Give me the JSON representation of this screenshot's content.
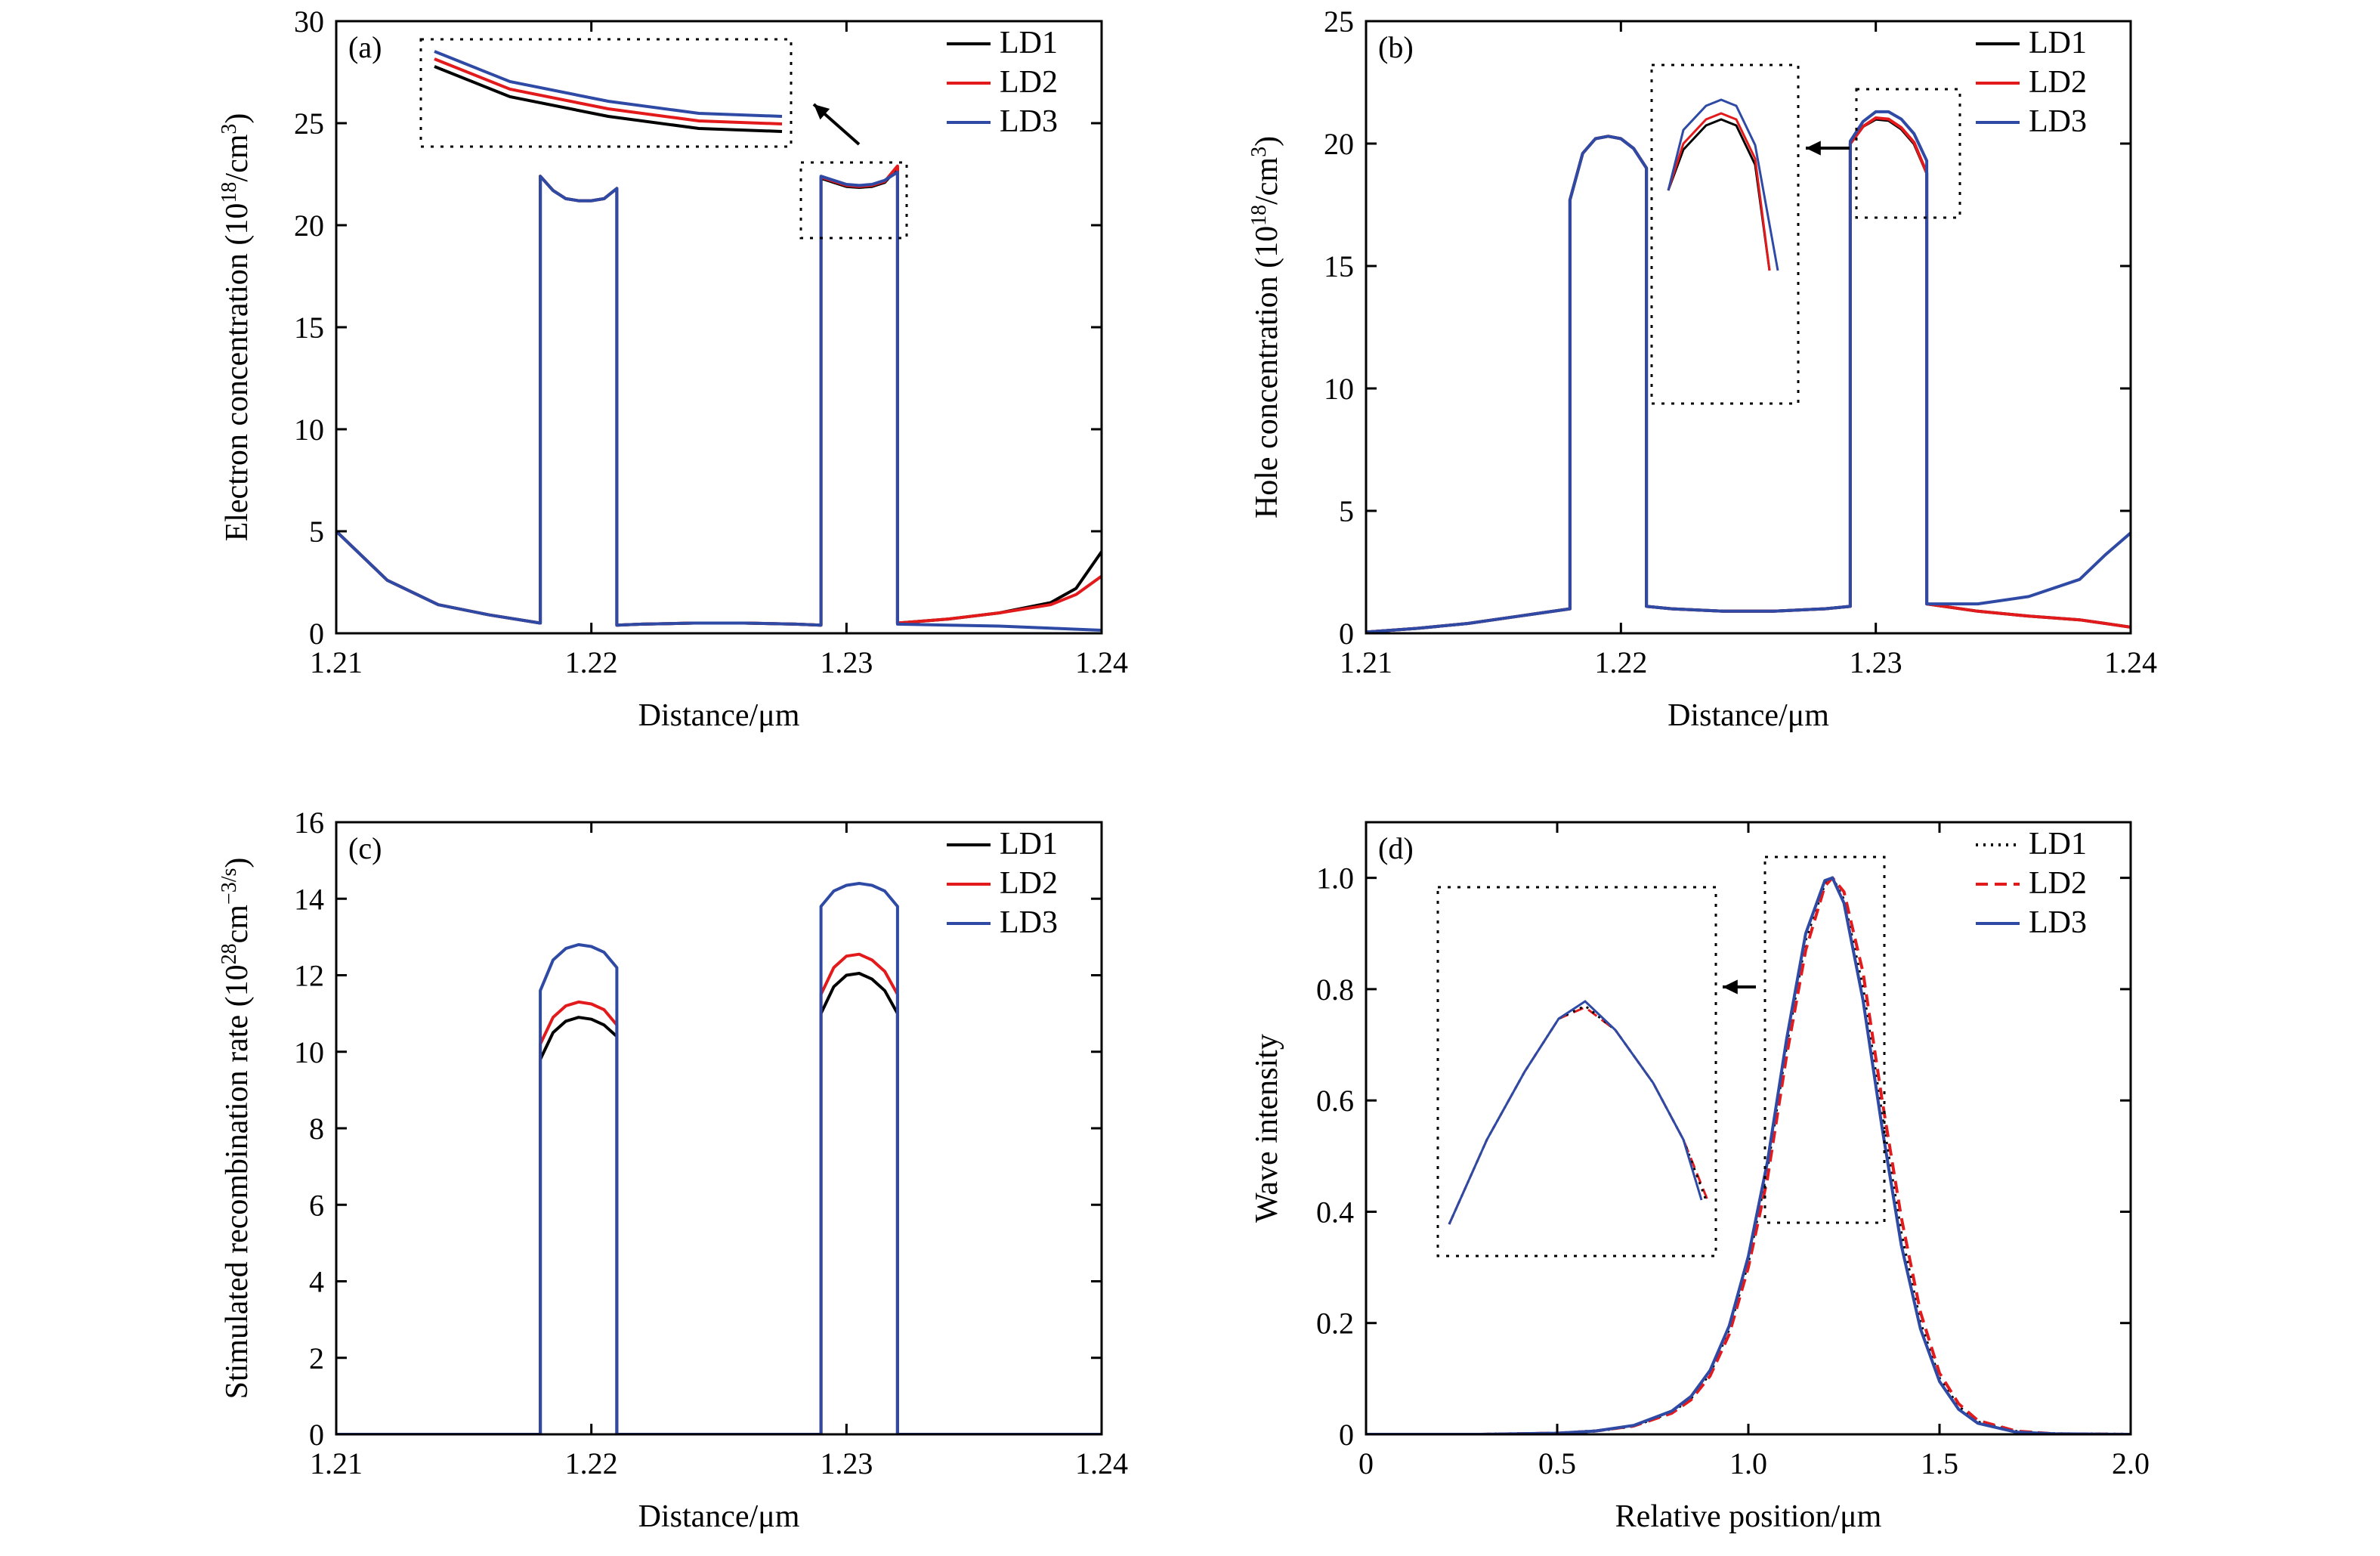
{
  "colors": {
    "LD1": "#000000",
    "LD2": "#e31a1c",
    "LD3": "#2e4aa5"
  },
  "chart_data": [
    {
      "type": "line",
      "panel": "(a)",
      "xlabel": "Distance/μm",
      "ylabel_main": "Electron concentration (10",
      "ylabel_sup": "18",
      "ylabel_mid": "/cm",
      "ylabel_sup2": "3",
      "ylabel_end": ")",
      "xlim": [
        1.21,
        1.24
      ],
      "ylim": [
        0,
        30
      ],
      "xticks": [
        "1.21",
        "1.22",
        "1.23",
        "1.24"
      ],
      "yticks": [
        "0",
        "5",
        "10",
        "15",
        "20",
        "25",
        "30"
      ],
      "legend": [
        "LD1",
        "LD2",
        "LD3"
      ],
      "legend_position": "top-right",
      "x": [
        1.21,
        1.212,
        1.214,
        1.216,
        1.218,
        1.218,
        1.2185,
        1.219,
        1.2195,
        1.22,
        1.2205,
        1.221,
        1.221,
        1.222,
        1.224,
        1.226,
        1.228,
        1.229,
        1.229,
        1.2295,
        1.23,
        1.2305,
        1.231,
        1.2315,
        1.232,
        1.232,
        1.234,
        1.236,
        1.238,
        1.239,
        1.24
      ],
      "series": [
        {
          "name": "LD1",
          "style": "solid",
          "values": [
            5.0,
            2.6,
            1.4,
            0.9,
            0.5,
            22.4,
            21.7,
            21.3,
            21.2,
            21.2,
            21.3,
            21.8,
            0.4,
            0.45,
            0.5,
            0.5,
            0.45,
            0.4,
            22.3,
            22.1,
            21.9,
            21.85,
            21.9,
            22.1,
            22.8,
            0.5,
            0.7,
            1.0,
            1.5,
            2.2,
            4.0
          ]
        },
        {
          "name": "LD2",
          "style": "solid",
          "values": [
            5.0,
            2.6,
            1.4,
            0.9,
            0.5,
            22.4,
            21.7,
            21.3,
            21.2,
            21.2,
            21.3,
            21.8,
            0.4,
            0.45,
            0.5,
            0.5,
            0.45,
            0.4,
            22.35,
            22.15,
            21.95,
            21.9,
            21.95,
            22.15,
            22.9,
            0.5,
            0.7,
            1.0,
            1.4,
            1.9,
            2.8
          ]
        },
        {
          "name": "LD3",
          "style": "solid",
          "values": [
            5.0,
            2.6,
            1.4,
            0.9,
            0.5,
            22.4,
            21.7,
            21.3,
            21.2,
            21.2,
            21.3,
            21.8,
            0.4,
            0.45,
            0.5,
            0.5,
            0.45,
            0.4,
            22.4,
            22.2,
            22.0,
            21.95,
            22.0,
            22.2,
            22.6,
            0.45,
            0.4,
            0.35,
            0.25,
            0.2,
            0.15
          ]
        }
      ]
    },
    {
      "type": "line",
      "panel": "(b)",
      "xlabel": "Distance/μm",
      "ylabel_main": "Hole concentration (10",
      "ylabel_sup": "18",
      "ylabel_mid": "/cm",
      "ylabel_sup2": "3",
      "ylabel_end": ")",
      "xlim": [
        1.21,
        1.24
      ],
      "ylim": [
        0,
        25
      ],
      "xticks": [
        "1.21",
        "1.22",
        "1.23",
        "1.24"
      ],
      "yticks": [
        "0",
        "5",
        "10",
        "15",
        "20",
        "25"
      ],
      "legend": [
        "LD1",
        "LD2",
        "LD3"
      ],
      "legend_position": "top-right",
      "x": [
        1.21,
        1.212,
        1.214,
        1.216,
        1.218,
        1.218,
        1.2185,
        1.219,
        1.2195,
        1.22,
        1.2205,
        1.221,
        1.221,
        1.222,
        1.224,
        1.226,
        1.228,
        1.229,
        1.229,
        1.2295,
        1.23,
        1.2305,
        1.231,
        1.2315,
        1.232,
        1.232,
        1.234,
        1.236,
        1.238,
        1.239,
        1.24
      ],
      "series": [
        {
          "name": "LD1",
          "style": "solid",
          "values": [
            0.05,
            0.2,
            0.4,
            0.7,
            1.0,
            17.7,
            19.6,
            20.2,
            20.3,
            20.2,
            19.8,
            19.0,
            1.1,
            1.0,
            0.9,
            0.9,
            1.0,
            1.1,
            20.0,
            20.7,
            21.0,
            20.95,
            20.6,
            20.0,
            18.8,
            1.2,
            0.9,
            0.7,
            0.55,
            0.4,
            0.25
          ]
        },
        {
          "name": "LD2",
          "style": "solid",
          "values": [
            0.05,
            0.2,
            0.4,
            0.7,
            1.0,
            17.7,
            19.6,
            20.2,
            20.3,
            20.2,
            19.8,
            19.0,
            1.1,
            1.0,
            0.9,
            0.9,
            1.0,
            1.1,
            20.0,
            20.7,
            21.05,
            21.0,
            20.65,
            20.05,
            18.8,
            1.2,
            0.9,
            0.7,
            0.55,
            0.4,
            0.25
          ]
        },
        {
          "name": "LD3",
          "style": "solid",
          "values": [
            0.05,
            0.2,
            0.4,
            0.7,
            1.0,
            17.7,
            19.6,
            20.2,
            20.3,
            20.2,
            19.8,
            19.0,
            1.1,
            1.0,
            0.9,
            0.9,
            1.0,
            1.1,
            20.1,
            20.9,
            21.3,
            21.3,
            21.0,
            20.4,
            19.3,
            1.2,
            1.2,
            1.5,
            2.2,
            3.2,
            4.1
          ]
        }
      ]
    },
    {
      "type": "line",
      "panel": "(c)",
      "xlabel": "Distance/μm",
      "ylabel_main": "Stimulated recombination rate (10",
      "ylabel_sup": "28",
      "ylabel_mid": "cm",
      "ylabel_sup2": "−3/s",
      "ylabel_end": ")",
      "xlim": [
        1.21,
        1.24
      ],
      "ylim": [
        0,
        16
      ],
      "xticks": [
        "1.21",
        "1.22",
        "1.23",
        "1.24"
      ],
      "yticks": [
        "0",
        "2",
        "4",
        "6",
        "8",
        "10",
        "12",
        "14",
        "16"
      ],
      "legend": [
        "LD1",
        "LD2",
        "LD3"
      ],
      "legend_position": "top-right",
      "x": [
        1.21,
        1.218,
        1.218,
        1.2185,
        1.219,
        1.2195,
        1.22,
        1.2205,
        1.221,
        1.221,
        1.229,
        1.229,
        1.2295,
        1.23,
        1.2305,
        1.231,
        1.2315,
        1.232,
        1.232,
        1.24
      ],
      "series": [
        {
          "name": "LD1",
          "style": "solid",
          "values": [
            0,
            0,
            9.8,
            10.5,
            10.8,
            10.9,
            10.85,
            10.7,
            10.4,
            0,
            0,
            11.0,
            11.7,
            12.0,
            12.05,
            11.9,
            11.6,
            11.0,
            0,
            0
          ]
        },
        {
          "name": "LD2",
          "style": "solid",
          "values": [
            0,
            0,
            10.2,
            10.9,
            11.2,
            11.3,
            11.25,
            11.1,
            10.7,
            0,
            0,
            11.5,
            12.2,
            12.5,
            12.55,
            12.4,
            12.1,
            11.5,
            0,
            0
          ]
        },
        {
          "name": "LD3",
          "style": "solid",
          "values": [
            0,
            0,
            11.6,
            12.4,
            12.7,
            12.8,
            12.75,
            12.6,
            12.2,
            0,
            0,
            13.8,
            14.2,
            14.35,
            14.4,
            14.35,
            14.2,
            13.8,
            0,
            0
          ]
        }
      ]
    },
    {
      "type": "line",
      "panel": "(d)",
      "xlabel": "Relative position/μm",
      "ylabel_main": "Wave intensity",
      "ylabel_sup": "",
      "ylabel_mid": "",
      "ylabel_sup2": "",
      "ylabel_end": "",
      "xlim": [
        0,
        2.0
      ],
      "ylim": [
        0,
        1.1
      ],
      "xticks": [
        "0",
        "0.5",
        "1.0",
        "1.5",
        "2.0"
      ],
      "yticks": [
        "0",
        "0.2",
        "0.4",
        "0.6",
        "0.8",
        "1.0"
      ],
      "legend": [
        "LD1",
        "LD2",
        "LD3"
      ],
      "legend_position": "top-right",
      "x": [
        0,
        0.3,
        0.5,
        0.6,
        0.7,
        0.8,
        0.85,
        0.9,
        0.95,
        1.0,
        1.05,
        1.1,
        1.15,
        1.2,
        1.22,
        1.25,
        1.3,
        1.35,
        1.4,
        1.45,
        1.5,
        1.55,
        1.6,
        1.7,
        1.8,
        2.0
      ],
      "series": [
        {
          "name": "LD1",
          "style": "dotted",
          "values": [
            0,
            0.0,
            0.002,
            0.006,
            0.015,
            0.04,
            0.065,
            0.11,
            0.19,
            0.31,
            0.48,
            0.7,
            0.89,
            0.99,
            1.0,
            0.96,
            0.8,
            0.57,
            0.36,
            0.2,
            0.1,
            0.05,
            0.022,
            0.005,
            0.001,
            0
          ]
        },
        {
          "name": "LD2",
          "style": "dashed",
          "values": [
            0,
            0.0,
            0.002,
            0.006,
            0.015,
            0.038,
            0.062,
            0.105,
            0.18,
            0.3,
            0.46,
            0.68,
            0.87,
            0.985,
            1.0,
            0.975,
            0.83,
            0.6,
            0.39,
            0.22,
            0.11,
            0.055,
            0.025,
            0.006,
            0.001,
            0
          ]
        },
        {
          "name": "LD3",
          "style": "solid",
          "values": [
            0,
            0.0,
            0.002,
            0.006,
            0.016,
            0.042,
            0.068,
            0.115,
            0.195,
            0.32,
            0.49,
            0.71,
            0.9,
            0.995,
            1.0,
            0.955,
            0.78,
            0.55,
            0.34,
            0.19,
            0.095,
            0.045,
            0.02,
            0.004,
            0.001,
            0
          ]
        }
      ]
    }
  ]
}
